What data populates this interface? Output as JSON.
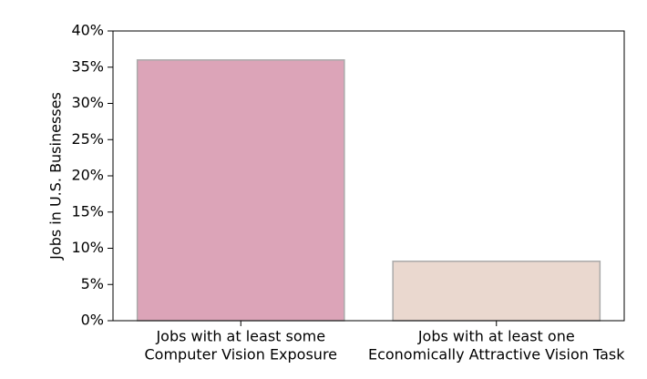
{
  "chart_data": {
    "type": "bar",
    "y_label": "Jobs in U.S. Businesses",
    "categories": [
      [
        "Jobs with at least some",
        "Computer Vision Exposure"
      ],
      [
        "Jobs with at least one",
        "Economically Attractive Vision Task"
      ]
    ],
    "values": [
      36,
      8.2
    ],
    "colors": [
      "#dca4b8",
      "#ead8cf"
    ],
    "ylim": [
      0,
      40
    ],
    "yticks": [
      {
        "value": 0,
        "label": "0%"
      },
      {
        "value": 5,
        "label": "5%"
      },
      {
        "value": 10,
        "label": "10%"
      },
      {
        "value": 15,
        "label": "15%"
      },
      {
        "value": 20,
        "label": "20%"
      },
      {
        "value": 25,
        "label": "25%"
      },
      {
        "value": 30,
        "label": "30%"
      },
      {
        "value": 35,
        "label": "35%"
      },
      {
        "value": 40,
        "label": "40%"
      }
    ],
    "grid": false
  }
}
